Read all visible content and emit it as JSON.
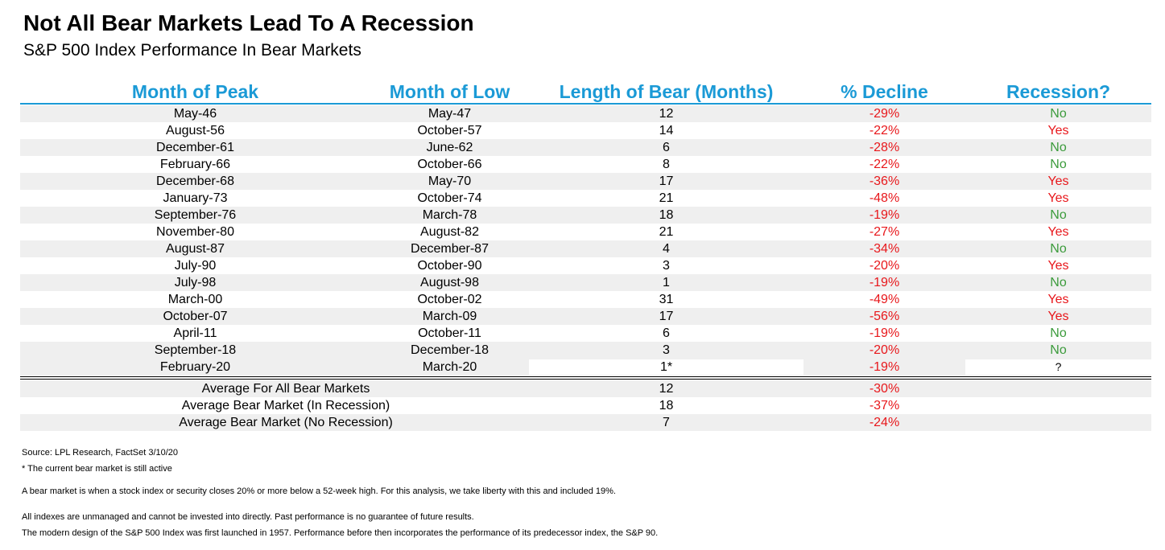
{
  "header": {
    "title": "Not All Bear Markets Lead To A Recession",
    "subtitle": "S&P 500 Index Performance In Bear Markets"
  },
  "table": {
    "columns": [
      "Month of Peak",
      "Month of Low",
      "Length of Bear (Months)",
      "% Decline",
      "Recession?"
    ],
    "rows": [
      [
        "May-46",
        "May-47",
        "12",
        "-29%",
        "No"
      ],
      [
        "August-56",
        "October-57",
        "14",
        "-22%",
        "Yes"
      ],
      [
        "December-61",
        "June-62",
        "6",
        "-28%",
        "No"
      ],
      [
        "February-66",
        "October-66",
        "8",
        "-22%",
        "No"
      ],
      [
        "December-68",
        "May-70",
        "17",
        "-36%",
        "Yes"
      ],
      [
        "January-73",
        "October-74",
        "21",
        "-48%",
        "Yes"
      ],
      [
        "September-76",
        "March-78",
        "18",
        "-19%",
        "No"
      ],
      [
        "November-80",
        "August-82",
        "21",
        "-27%",
        "Yes"
      ],
      [
        "August-87",
        "December-87",
        "4",
        "-34%",
        "No"
      ],
      [
        "July-90",
        "October-90",
        "3",
        "-20%",
        "Yes"
      ],
      [
        "July-98",
        "August-98",
        "1",
        "-19%",
        "No"
      ],
      [
        "March-00",
        "October-02",
        "31",
        "-49%",
        "Yes"
      ],
      [
        "October-07",
        "March-09",
        "17",
        "-56%",
        "Yes"
      ],
      [
        "April-11",
        "October-11",
        "6",
        "-19%",
        "No"
      ],
      [
        "September-18",
        "December-18",
        "3",
        "-20%",
        "No"
      ],
      [
        "February-20",
        "March-20",
        "1*",
        "-19%",
        "?"
      ]
    ],
    "summary": [
      [
        "Average For All Bear Markets",
        "12",
        "-30%"
      ],
      [
        "Average Bear Market (In Recession)",
        "18",
        "-37%"
      ],
      [
        "Average Bear Market (No Recession)",
        "7",
        "-24%"
      ]
    ]
  },
  "notes": [
    "Source: LPL Research, FactSet 3/10/20",
    "* The current bear market is still active",
    "A bear market is when a stock index or security closes 20% or more below a 52-week high. For this analysis, we take liberty with this and included 19%.",
    "All indexes are unmanaged and cannot be invested into directly. Past performance is no guarantee of future results.",
    "The modern design of the S&P 500 Index was first launched in 1957. Performance before then incorporates the performance of its predecessor index, the S&P 90."
  ]
}
